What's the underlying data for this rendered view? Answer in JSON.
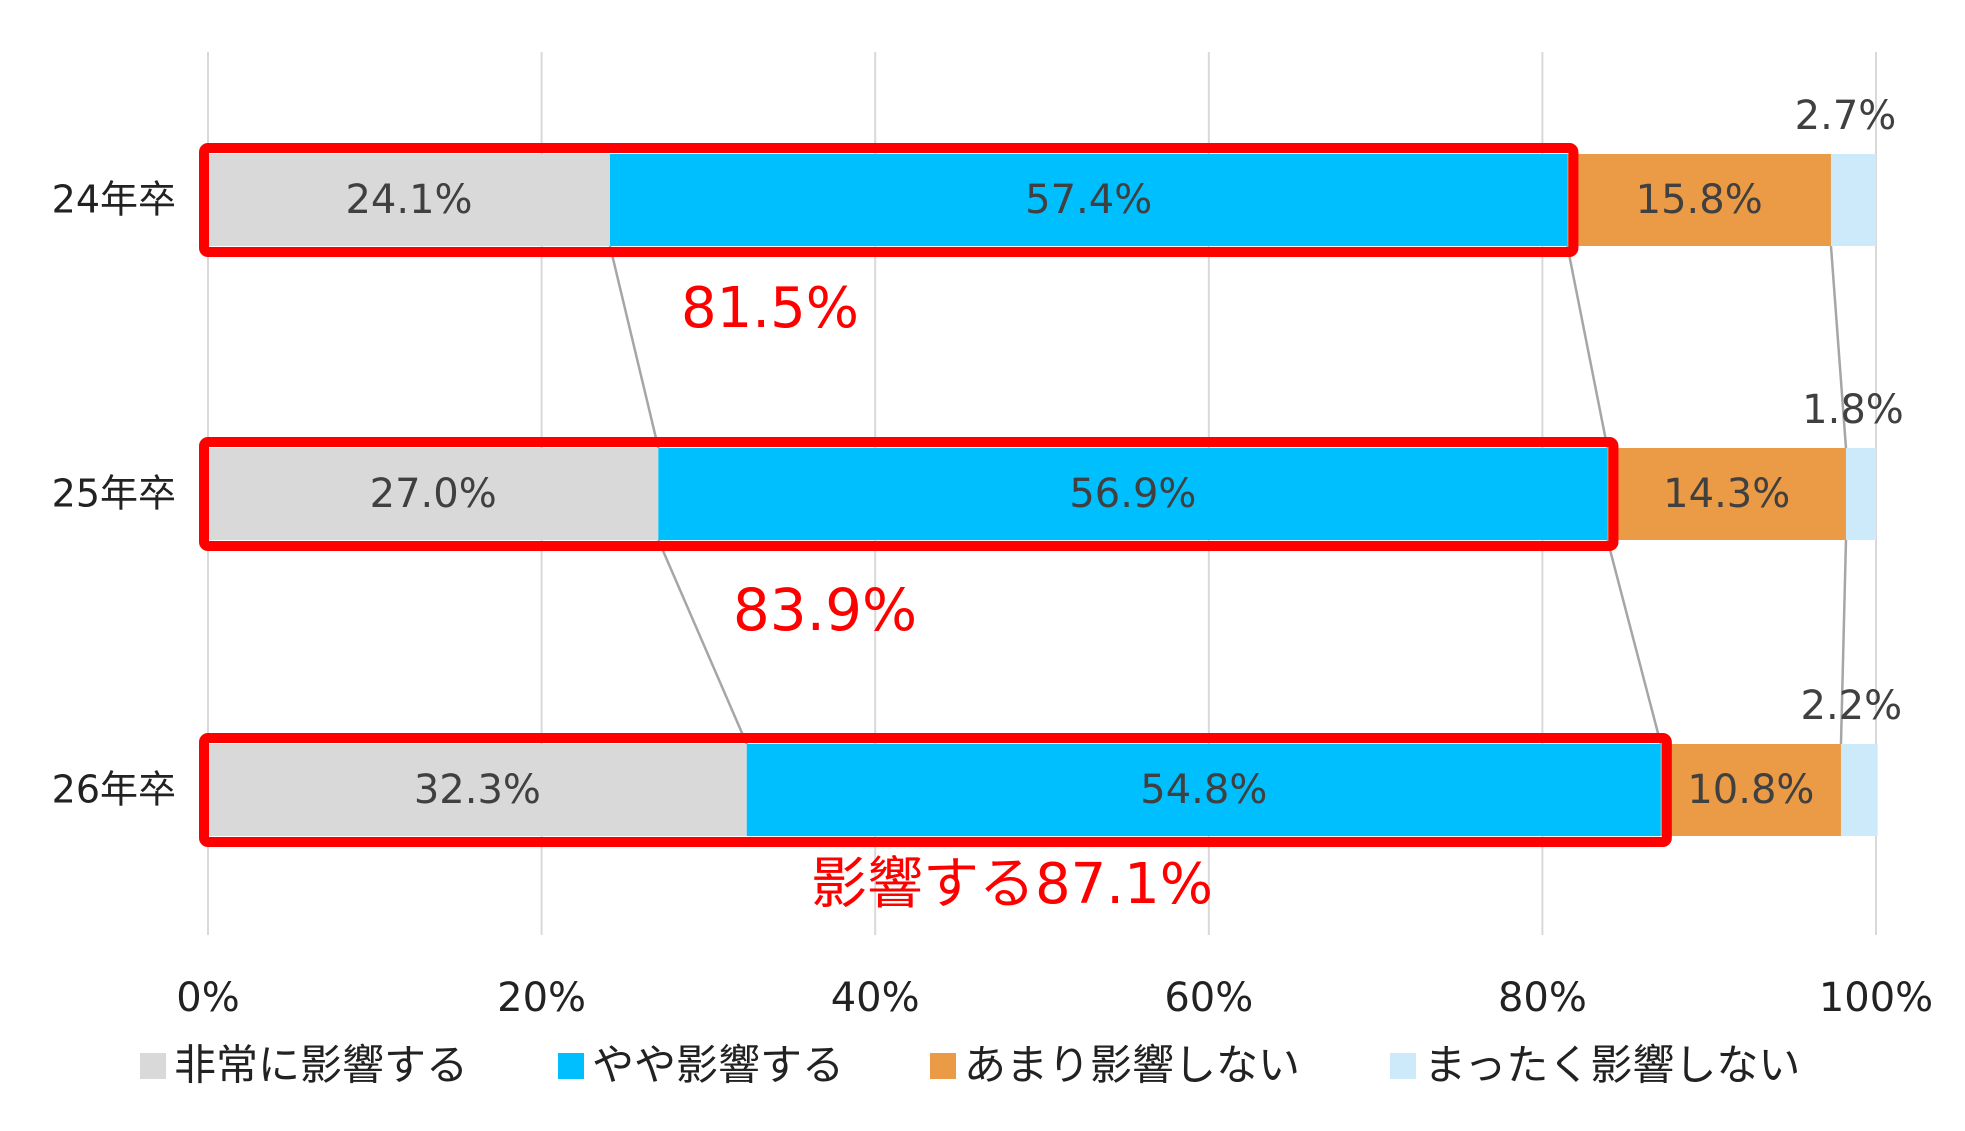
{
  "chart_data": {
    "type": "bar",
    "orientation": "horizontal",
    "stacked": true,
    "categories": [
      "24年卒",
      "25年卒",
      "26年卒"
    ],
    "series": [
      {
        "name": "非常に影響する",
        "values": [
          24.1,
          27.0,
          32.3
        ],
        "color": "#d9d9d9"
      },
      {
        "name": "やや影響する",
        "values": [
          57.4,
          56.9,
          54.8
        ],
        "color": "#00bfff"
      },
      {
        "name": "あまり影響しない",
        "values": [
          15.8,
          14.3,
          10.8
        ],
        "color": "#eb9b45"
      },
      {
        "name": "まったく影響しない",
        "values": [
          2.7,
          1.8,
          2.2
        ],
        "color": "#cdeafb"
      }
    ],
    "data_labels": [
      [
        "24.1%",
        "57.4%",
        "15.8%",
        "2.7%"
      ],
      [
        "27.0%",
        "56.9%",
        "14.3%",
        "1.8%"
      ],
      [
        "32.3%",
        "54.8%",
        "10.8%",
        "2.2%"
      ]
    ],
    "highlight_totals": [
      "81.5%",
      "83.9%",
      "影響する87.1%"
    ],
    "highlight_color": "#ff0000",
    "x_ticks": [
      "0%",
      "20%",
      "40%",
      "60%",
      "80%",
      "100%"
    ],
    "xlim": [
      0,
      100
    ],
    "grid": true,
    "legend_position": "bottom",
    "title": "",
    "xlabel": "",
    "ylabel": ""
  }
}
